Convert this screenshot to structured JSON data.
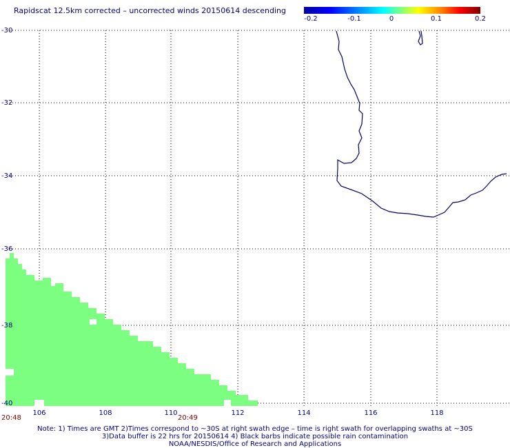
{
  "title": "Rapidscat 12.5km corrected – uncorrected winds 20150614 descending",
  "colorbar": {
    "labels": [
      "-0.2",
      "-0.1",
      "0",
      "0.1",
      "0.2"
    ]
  },
  "colors": {
    "text": "#00007a",
    "coast": "#000066",
    "swath": "#7cff80",
    "time": "#800000"
  },
  "y_axis": {
    "labels": [
      "-30",
      "-32",
      "-34",
      "-36",
      "-38",
      "-40"
    ]
  },
  "x_axis": {
    "labels": [
      "106",
      "108",
      "110",
      "112",
      "114",
      "116",
      "118"
    ]
  },
  "times": [
    "20:48",
    "20:49"
  ],
  "notes": [
    "Note: 1) Times are GMT 2)Times correspond to ~30S at right swath edge – time is right swath for overlapping swaths at ~30S",
    "3)Data buffer is 22 hrs for 20150614 4) Black barbs indicate possible rain contamination",
    "NOAA/NESDIS/Office of Research and Applications"
  ]
}
